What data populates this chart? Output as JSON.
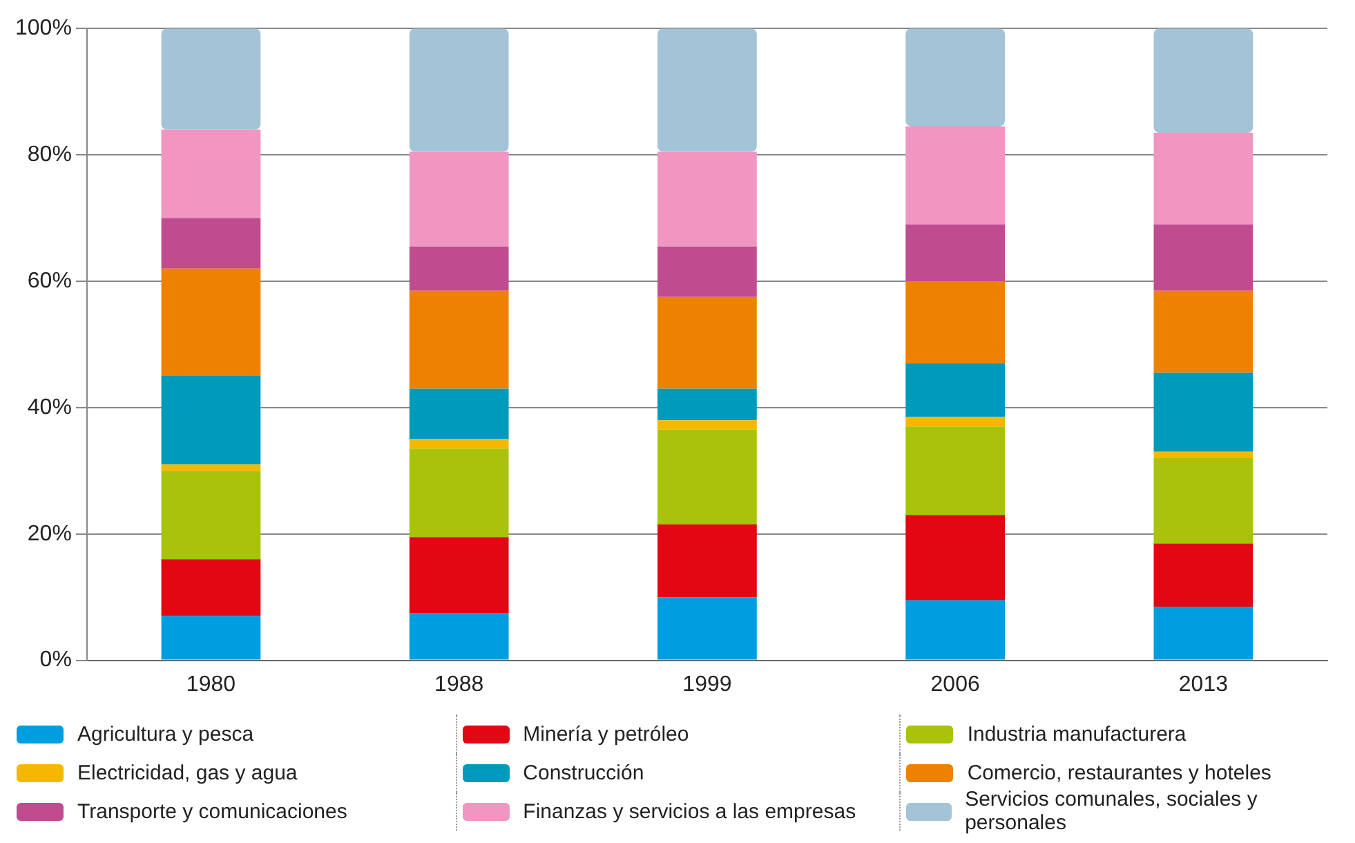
{
  "chart_data": {
    "type": "bar",
    "stacked": true,
    "categories": [
      "1980",
      "1988",
      "1999",
      "2006",
      "2013"
    ],
    "series": [
      {
        "name": "Agricultura y pesca",
        "color": "#009ee0",
        "values": [
          7,
          7.5,
          10,
          9.5,
          8.5
        ]
      },
      {
        "name": "Minería y petróleo",
        "color": "#e30613",
        "values": [
          9,
          12,
          11.5,
          13.5,
          10
        ]
      },
      {
        "name": "Industria manufacturera",
        "color": "#a8c30a",
        "values": [
          14,
          14,
          15,
          14,
          13.5
        ]
      },
      {
        "name": "Electricidad, gas y agua",
        "color": "#f5b800",
        "values": [
          1,
          1.5,
          1.5,
          1.5,
          1
        ]
      },
      {
        "name": "Construcción",
        "color": "#009bbb",
        "values": [
          14,
          8,
          5,
          8.5,
          12.5
        ]
      },
      {
        "name": "Comercio, restaurantes y hoteles",
        "color": "#ee8100",
        "values": [
          17,
          15.5,
          14.5,
          13,
          13
        ]
      },
      {
        "name": "Transporte y comunicaciones",
        "color": "#c04c90",
        "values": [
          8,
          7,
          8,
          9,
          10.5
        ]
      },
      {
        "name": "Finanzas y servicios a las empresas",
        "color": "#f096c0",
        "values": [
          14,
          15,
          15,
          15.5,
          14.5
        ]
      },
      {
        "name": "Servicios comunales, sociales y personales",
        "color": "#a3c3d7",
        "values": [
          16,
          19.5,
          19.5,
          15.5,
          16.5
        ]
      }
    ],
    "ylim": [
      0,
      100
    ],
    "yticks": [
      {
        "value": 0,
        "label": "0%"
      },
      {
        "value": 20,
        "label": "20%"
      },
      {
        "value": 40,
        "label": "40%"
      },
      {
        "value": 60,
        "label": "60%"
      },
      {
        "value": 80,
        "label": "80%"
      },
      {
        "value": 100,
        "label": "100%"
      }
    ],
    "grid": "y",
    "legend": "bottom"
  }
}
